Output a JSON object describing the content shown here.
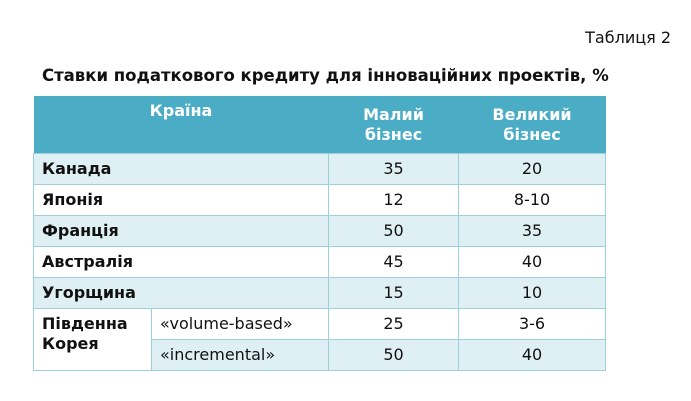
{
  "table_number": "Таблиця 2",
  "title": "Ставки податкового кредиту для інноваційних проектів, %",
  "header": {
    "country": "Країна",
    "small_line1": "Малий",
    "small_line2": "бізнес",
    "large_line1": "Великий",
    "large_line2": "бізнес"
  },
  "rows": [
    {
      "country": "Канада",
      "small": "35",
      "large": "20"
    },
    {
      "country": "Японія",
      "small": "12",
      "large": "8-10"
    },
    {
      "country": "Франція",
      "small": "50",
      "large": "35"
    },
    {
      "country": "Австралія",
      "small": "45",
      "large": "40"
    },
    {
      "country": "Угорщина",
      "small": "15",
      "large": "10"
    }
  ],
  "korea": {
    "name_line1": "Південна",
    "name_line2": "Корея",
    "subrows": [
      {
        "label": "«volume-based»",
        "small": "25",
        "large": "3-6"
      },
      {
        "label": "«incremental»",
        "small": "50",
        "large": "40"
      }
    ]
  }
}
